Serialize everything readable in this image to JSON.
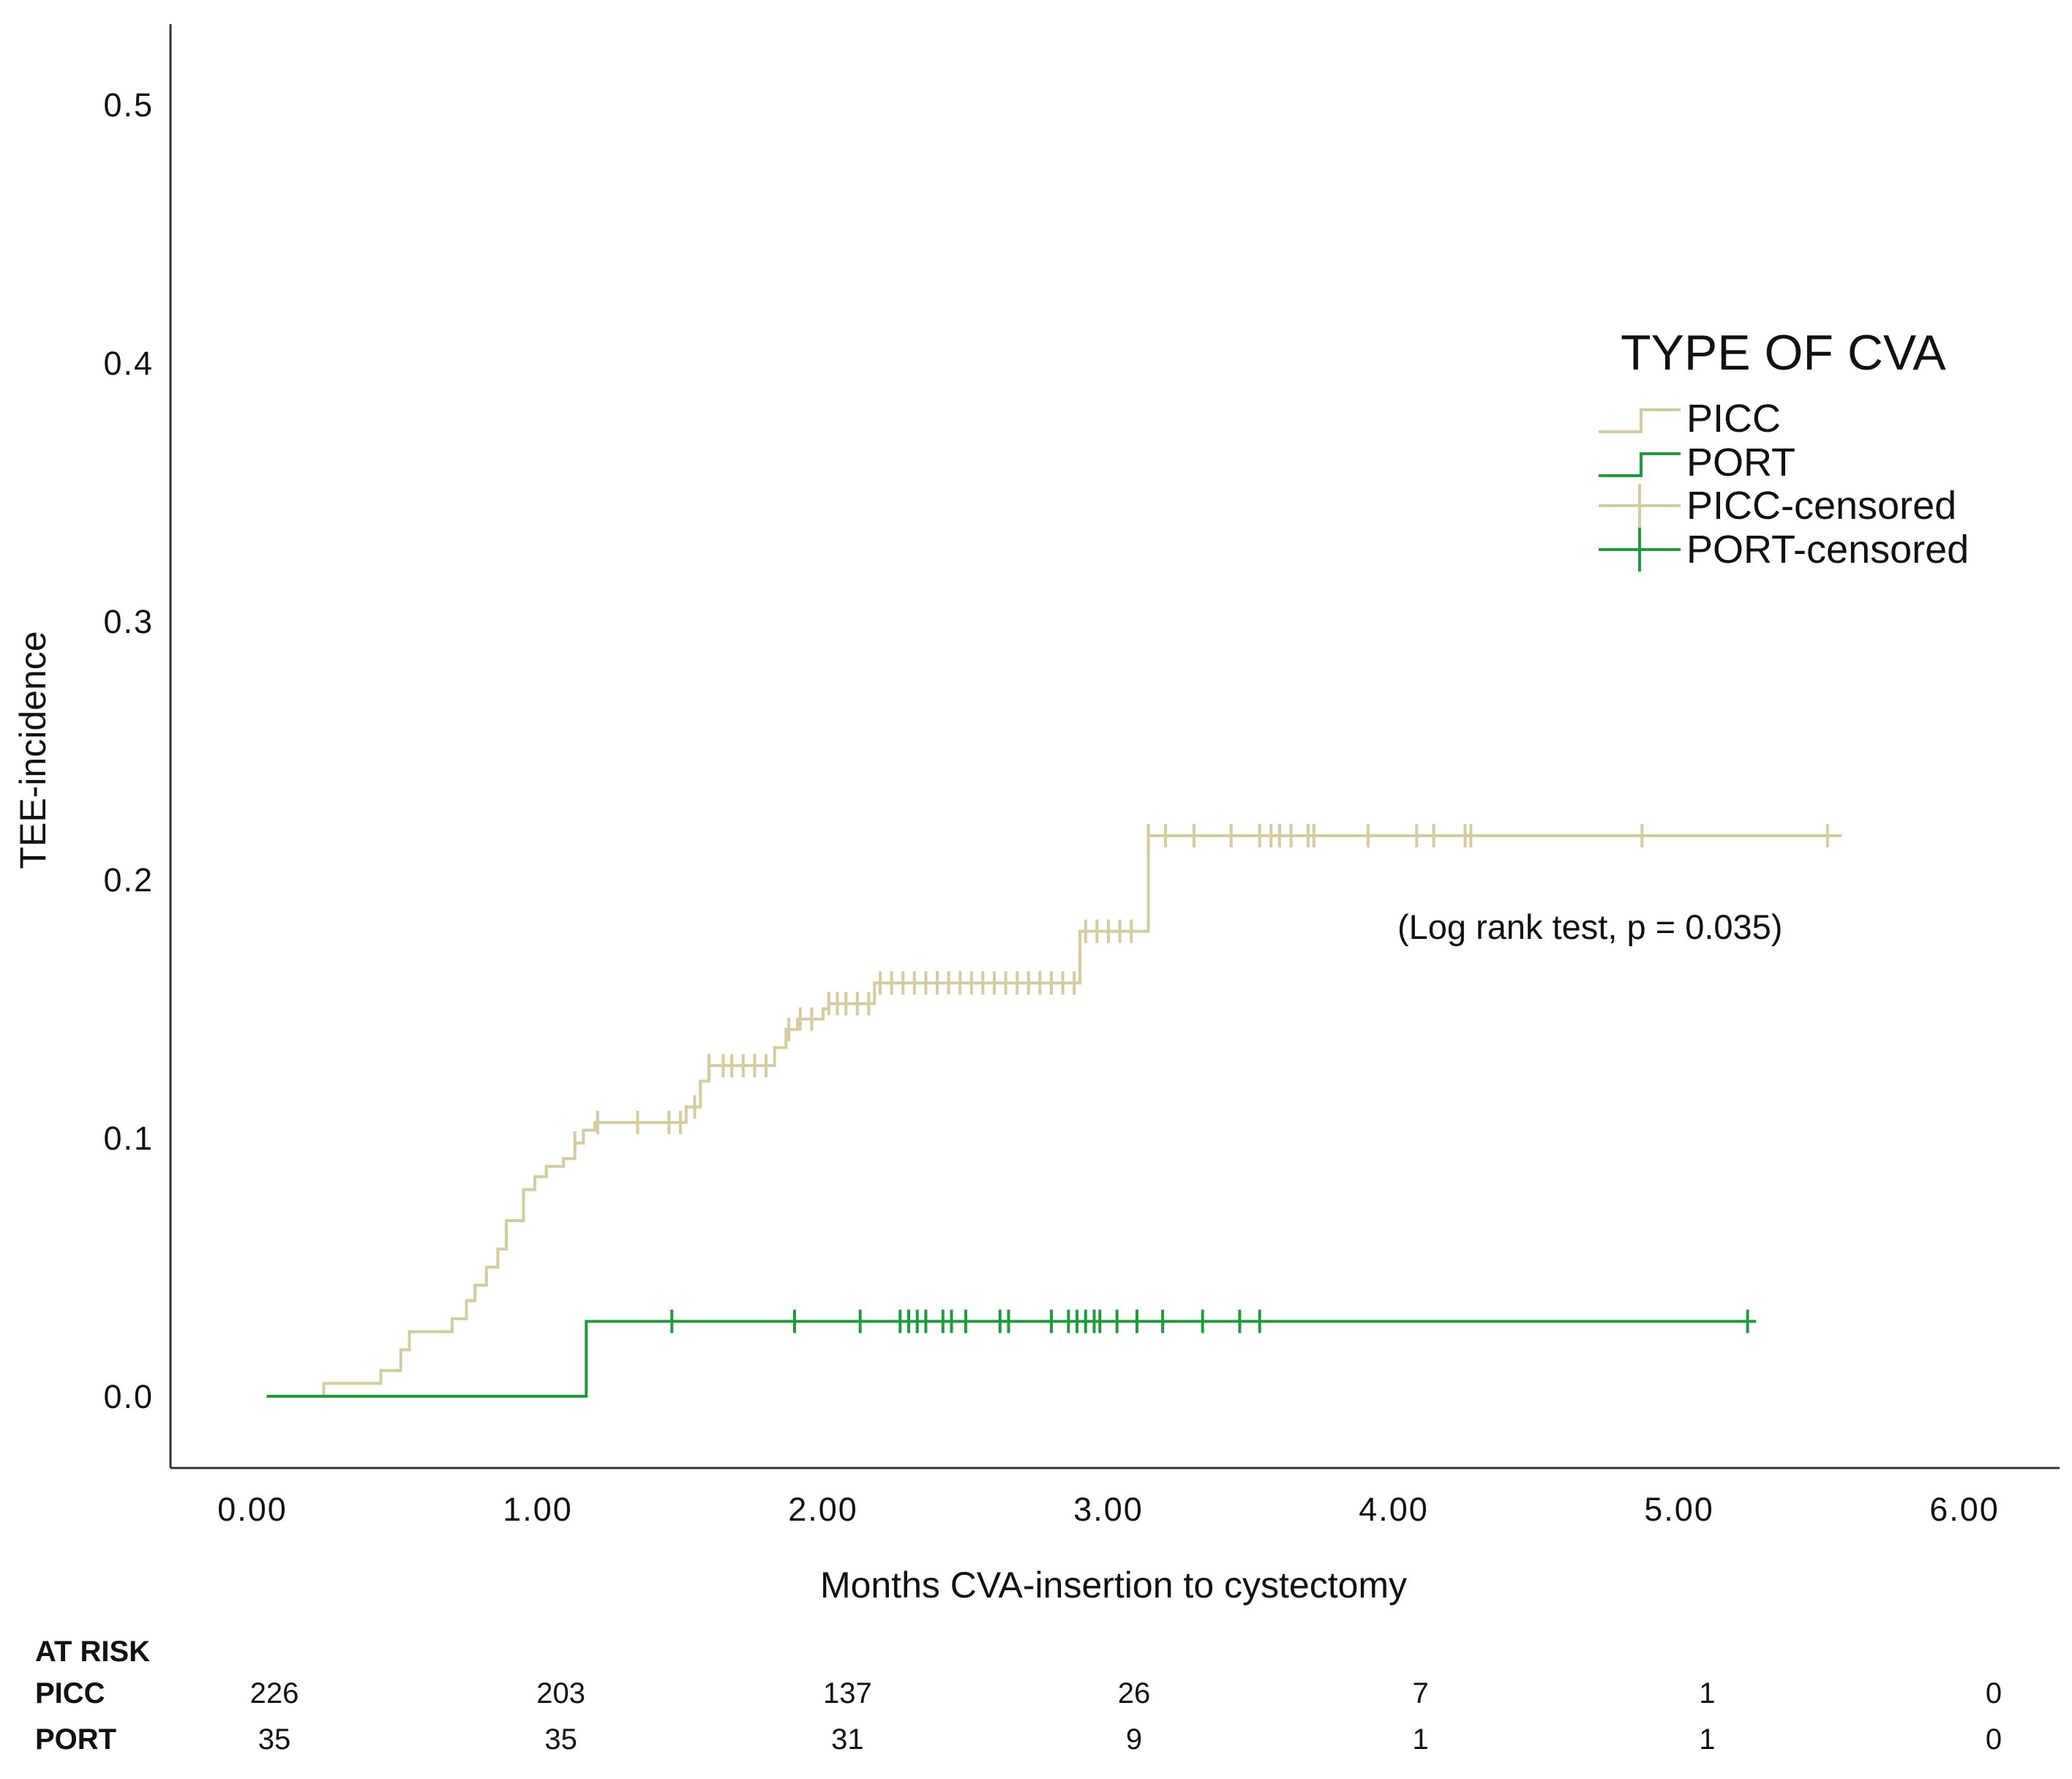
{
  "colors": {
    "picc": "#d4cc9e",
    "port": "#1e9c3b",
    "axis": "#333333",
    "text": "#111111"
  },
  "chart_data": {
    "type": "line",
    "subtype": "kaplan-meier-cumulative-incidence",
    "title": "",
    "xlabel": "Months CVA-insertion to cystectomy",
    "ylabel": "TEE-incidence",
    "xlim": [
      -0.25,
      6.35
    ],
    "ylim": [
      -0.025,
      0.53
    ],
    "x_ticks": [
      0,
      1,
      2,
      3,
      4,
      5,
      6
    ],
    "x_tick_labels": [
      "0.00",
      "1.00",
      "2.00",
      "3.00",
      "4.00",
      "5.00",
      "6.00"
    ],
    "y_ticks": [
      0.0,
      0.1,
      0.2,
      0.3,
      0.4,
      0.5
    ],
    "y_tick_labels": [
      "0.0",
      "0.1",
      "0.2",
      "0.3",
      "0.4",
      "0.5"
    ],
    "legend": {
      "title": "TYPE OF CVA",
      "position": "right",
      "entries": [
        {
          "label": "PICC",
          "symbol": "step",
          "series": "PICC"
        },
        {
          "label": "PORT",
          "symbol": "step",
          "series": "PORT"
        },
        {
          "label": "PICC-censored",
          "symbol": "cross",
          "series": "PICC"
        },
        {
          "label": "PORT-censored",
          "symbol": "cross",
          "series": "PORT"
        }
      ]
    },
    "annotation": "(Log rank test, p = 0.035)",
    "series": [
      {
        "name": "PICC",
        "color_key": "picc",
        "steps": [
          [
            0.05,
            0.0
          ],
          [
            0.25,
            0.005
          ],
          [
            0.45,
            0.01
          ],
          [
            0.52,
            0.018
          ],
          [
            0.55,
            0.025
          ],
          [
            0.7,
            0.03
          ],
          [
            0.75,
            0.037
          ],
          [
            0.78,
            0.043
          ],
          [
            0.82,
            0.05
          ],
          [
            0.86,
            0.057
          ],
          [
            0.89,
            0.068
          ],
          [
            0.95,
            0.08
          ],
          [
            0.99,
            0.085
          ],
          [
            1.03,
            0.089
          ],
          [
            1.09,
            0.092
          ],
          [
            1.13,
            0.098
          ],
          [
            1.16,
            0.103
          ],
          [
            1.2,
            0.106
          ],
          [
            1.52,
            0.112
          ],
          [
            1.57,
            0.122
          ],
          [
            1.6,
            0.128
          ],
          [
            1.83,
            0.135
          ],
          [
            1.87,
            0.142
          ],
          [
            1.91,
            0.146
          ],
          [
            2.0,
            0.15
          ],
          [
            2.02,
            0.152
          ],
          [
            2.18,
            0.16
          ],
          [
            2.9,
            0.18
          ],
          [
            3.14,
            0.217
          ],
          [
            5.57,
            0.217
          ]
        ],
        "censored": [
          1.13,
          1.21,
          1.35,
          1.46,
          1.5,
          1.55,
          1.6,
          1.65,
          1.68,
          1.72,
          1.76,
          1.8,
          1.88,
          1.92,
          1.96,
          2.02,
          2.05,
          2.08,
          2.12,
          2.16,
          2.2,
          2.24,
          2.28,
          2.32,
          2.36,
          2.4,
          2.44,
          2.48,
          2.52,
          2.56,
          2.6,
          2.64,
          2.68,
          2.72,
          2.76,
          2.8,
          2.84,
          2.88,
          2.92,
          2.96,
          3.0,
          3.04,
          3.08,
          3.14,
          3.2,
          3.3,
          3.43,
          3.53,
          3.57,
          3.6,
          3.64,
          3.7,
          3.72,
          3.91,
          4.08,
          4.14,
          4.25,
          4.27,
          4.87,
          5.52
        ]
      },
      {
        "name": "PORT",
        "color_key": "port",
        "steps": [
          [
            0.05,
            0.0
          ],
          [
            1.17,
            0.029
          ],
          [
            5.27,
            0.029
          ]
        ],
        "censored": [
          1.47,
          1.9,
          2.13,
          2.27,
          2.3,
          2.33,
          2.36,
          2.42,
          2.45,
          2.5,
          2.62,
          2.65,
          2.8,
          2.86,
          2.89,
          2.92,
          2.95,
          2.97,
          3.03,
          3.1,
          3.19,
          3.33,
          3.46,
          3.53,
          5.24
        ]
      }
    ],
    "at_risk": {
      "header": "AT RISK",
      "times": [
        0,
        1,
        2,
        3,
        4,
        5,
        6
      ],
      "rows": [
        {
          "label": "PICC",
          "values": [
            "226",
            "203",
            "137",
            "26",
            "7",
            "1",
            "0"
          ]
        },
        {
          "label": "PORT",
          "values": [
            "35",
            "35",
            "31",
            "9",
            "1",
            "1",
            "0"
          ]
        }
      ]
    }
  }
}
